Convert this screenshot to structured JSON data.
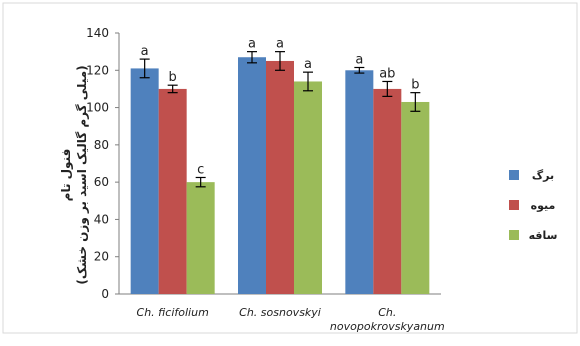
{
  "chart_data": {
    "type": "bar",
    "categories": [
      "Ch. ficifolium",
      "Ch. sosnovskyi",
      "Ch. novopokrovskyanum"
    ],
    "category_display": [
      [
        "Ch. ficifolium"
      ],
      [
        "Ch. sosnovskyi"
      ],
      [
        "Ch.",
        "novopokrovskyanum"
      ]
    ],
    "series": [
      {
        "name": "برگ",
        "color": "#4f81bd",
        "values": [
          121,
          127,
          120
        ],
        "errors": [
          5,
          3,
          1.5
        ],
        "sig": [
          "a",
          "a",
          "a"
        ]
      },
      {
        "name": "میوه",
        "color": "#c0504d",
        "values": [
          110,
          125,
          110
        ],
        "errors": [
          2,
          5,
          4
        ],
        "sig": [
          "b",
          "a",
          "ab"
        ]
      },
      {
        "name": "ساقه",
        "color": "#9bbb59",
        "values": [
          60,
          114,
          103
        ],
        "errors": [
          2.5,
          5,
          5
        ],
        "sig": [
          "c",
          "a",
          "b"
        ]
      }
    ],
    "ylabel_lines": [
      "فنول تام",
      "(میلی گرم گالیک اسید بر وزن خشک)"
    ],
    "ylim": [
      0,
      140
    ],
    "yticks": [
      0,
      20,
      40,
      60,
      80,
      100,
      120,
      140
    ],
    "grid": false,
    "legend_position": "right"
  }
}
